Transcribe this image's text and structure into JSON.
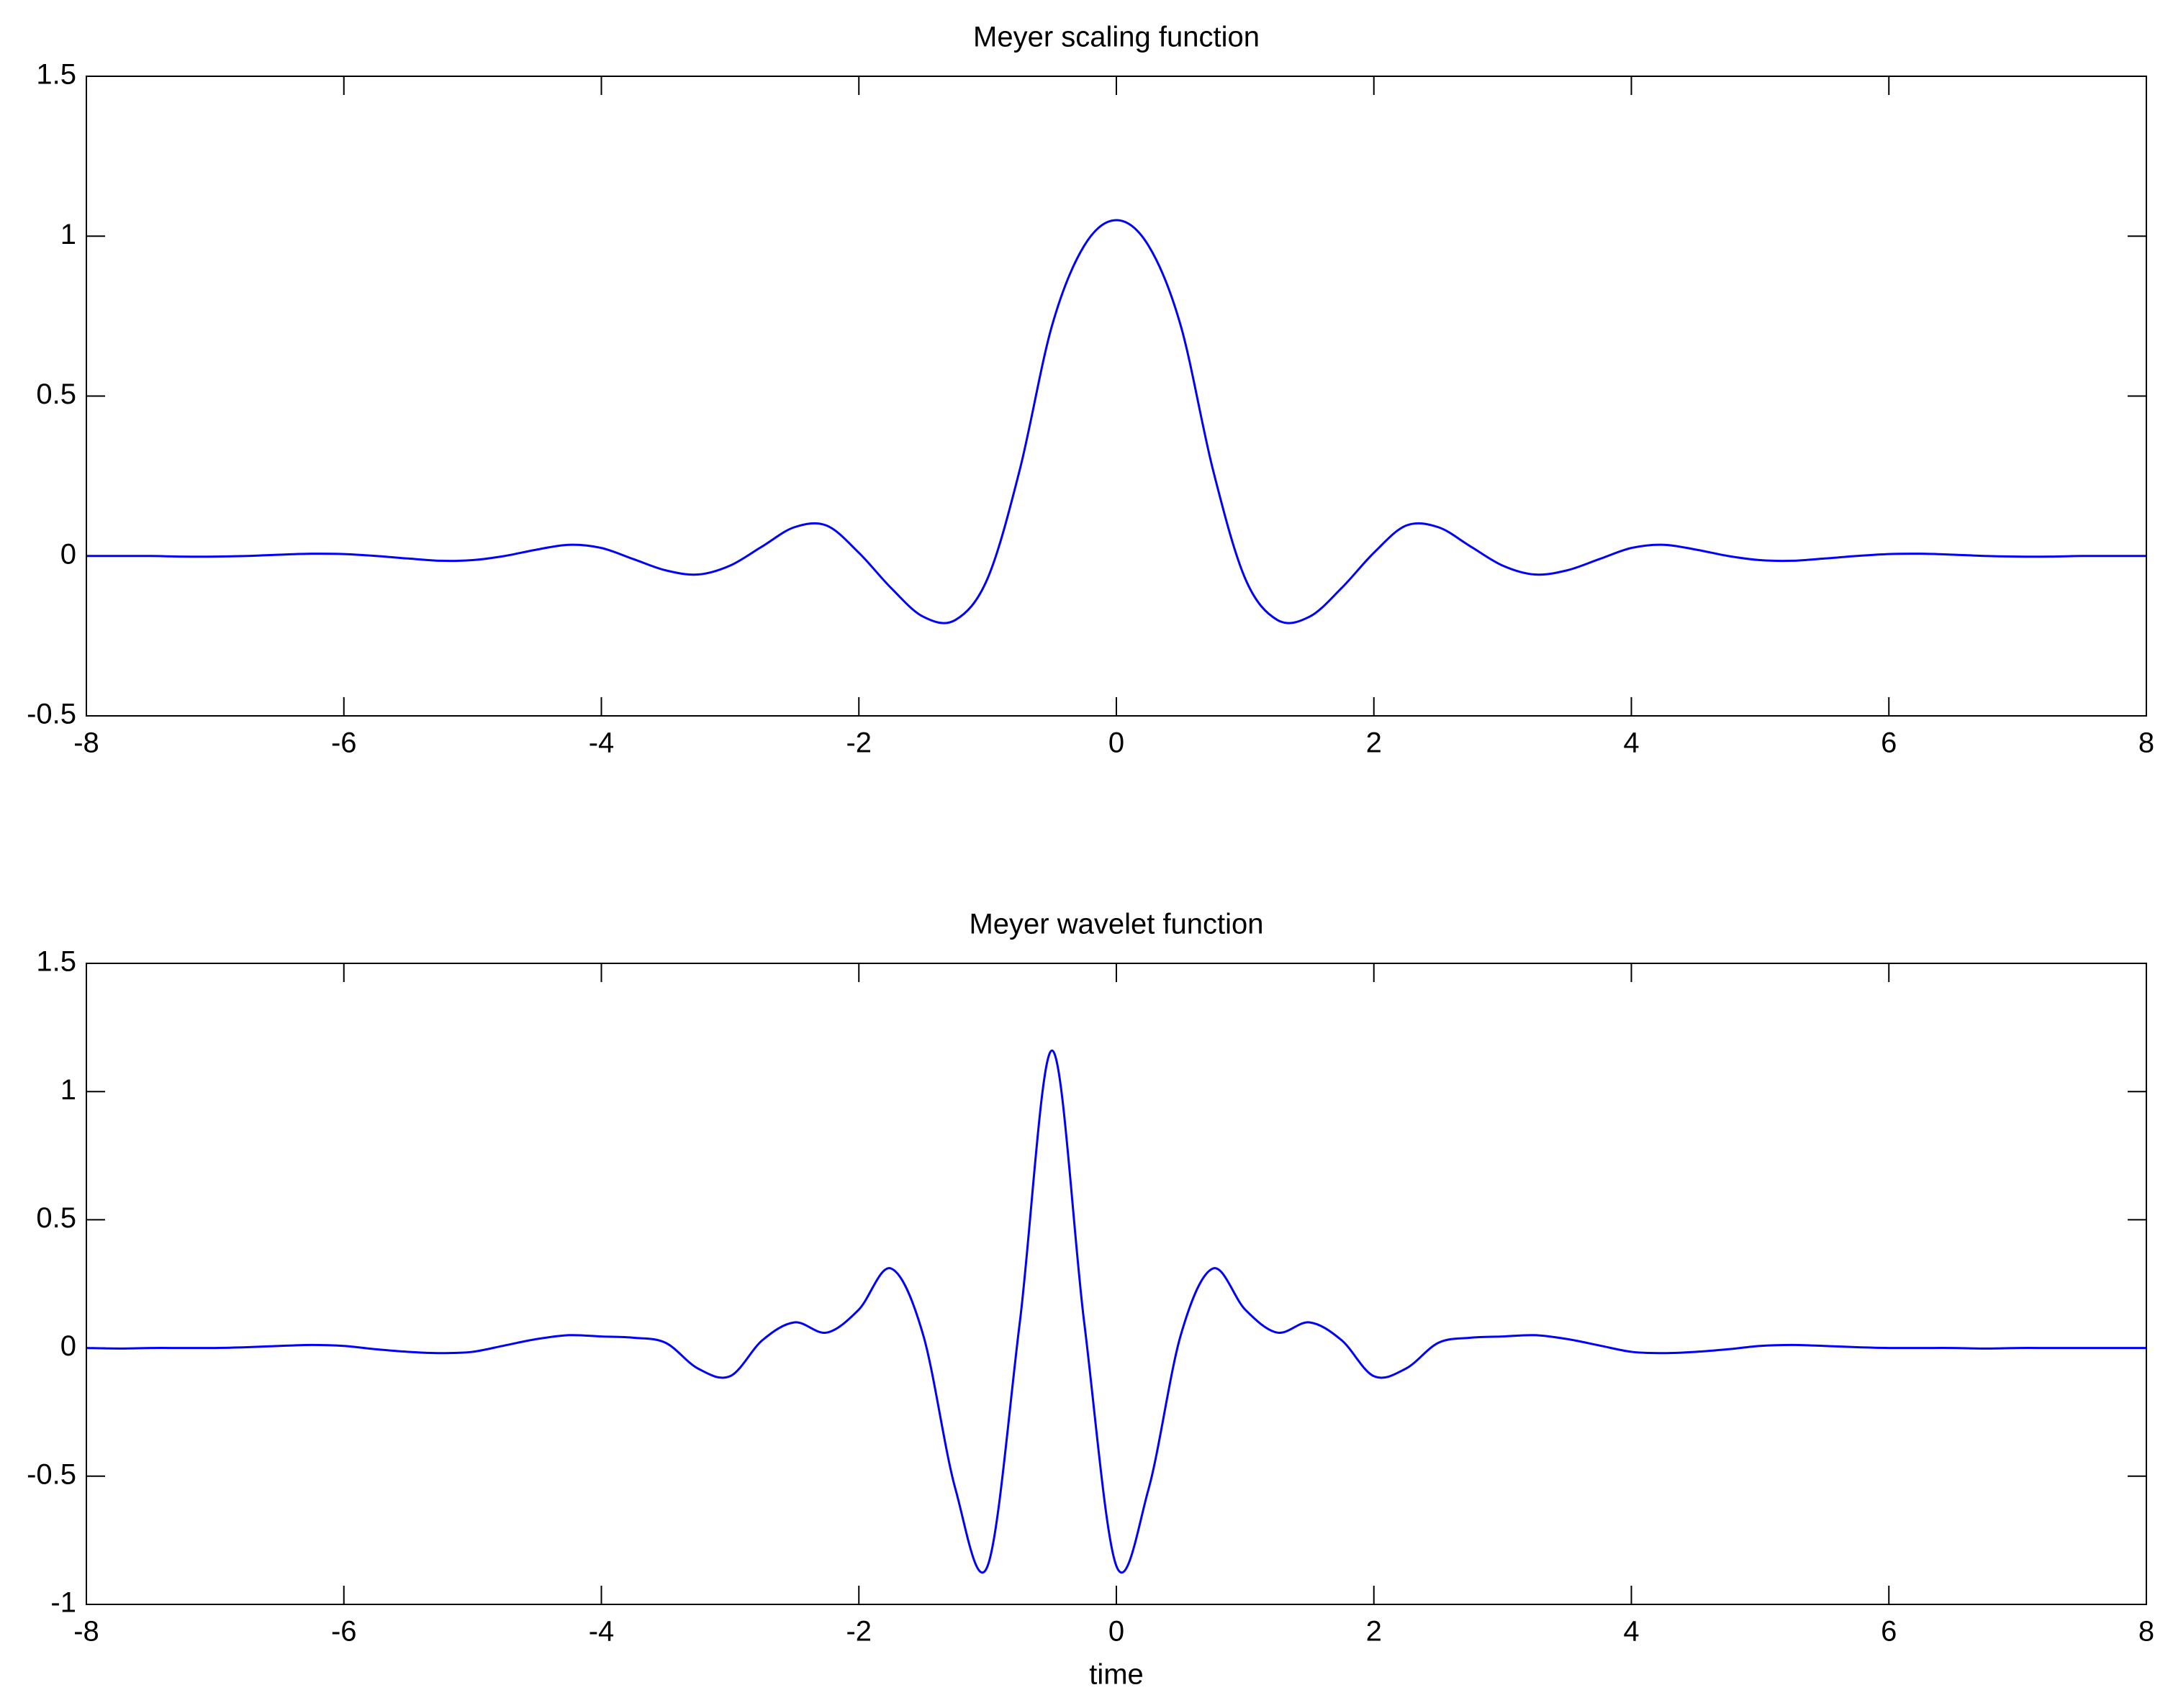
{
  "chart_data": [
    {
      "type": "line",
      "title": "Meyer scaling function",
      "color": "#0000ff",
      "x": [
        -8,
        -7.75,
        -7.5,
        -7.25,
        -7,
        -6.75,
        -6.5,
        -6.25,
        -6,
        -5.75,
        -5.5,
        -5.25,
        -5,
        -4.75,
        -4.5,
        -4.25,
        -4,
        -3.75,
        -3.5,
        -3.25,
        -3,
        -2.75,
        -2.5,
        -2.25,
        -2,
        -1.75,
        -1.5,
        -1.25,
        -1,
        -0.75,
        -0.5,
        -0.25,
        0,
        0.25,
        0.5,
        0.75,
        1,
        1.25,
        1.5,
        1.75,
        2,
        2.25,
        2.5,
        2.75,
        3,
        3.25,
        3.5,
        3.75,
        4,
        4.25,
        4.5,
        4.75,
        5,
        5.25,
        5.5,
        5.75,
        6,
        6.25,
        6.5,
        6.75,
        7,
        7.25,
        7.5,
        7.75,
        8
      ],
      "values": [
        0,
        0,
        0,
        -0.002,
        -0.002,
        0,
        0.004,
        0.007,
        0.006,
        0,
        -0.008,
        -0.015,
        -0.013,
        0,
        0.02,
        0.035,
        0.025,
        -0.01,
        -0.045,
        -0.058,
        -0.03,
        0.03,
        0.09,
        0.095,
        0.01,
        -0.1,
        -0.19,
        -0.2,
        -0.07,
        0.27,
        0.72,
        0.97,
        1.05,
        0.97,
        0.72,
        0.27,
        -0.07,
        -0.2,
        -0.19,
        -0.1,
        0.01,
        0.095,
        0.09,
        0.03,
        -0.03,
        -0.058,
        -0.045,
        -0.01,
        0.025,
        0.035,
        0.02,
        0,
        -0.013,
        -0.015,
        -0.008,
        0,
        0.006,
        0.007,
        0.004,
        0,
        -0.002,
        -0.002,
        0,
        0,
        0
      ],
      "xlim": [
        -8,
        8
      ],
      "xticks": [
        -8,
        -6,
        -4,
        -2,
        0,
        2,
        4,
        6,
        8
      ],
      "ylim": [
        -0.5,
        1.5
      ],
      "yticks": [
        -0.5,
        0,
        0.5,
        1,
        1.5
      ],
      "grid": false
    },
    {
      "type": "line",
      "title": "Meyer wavelet function",
      "xlabel": "time",
      "color": "#0000ff",
      "x": [
        -8,
        -7.75,
        -7.5,
        -7.25,
        -7,
        -6.75,
        -6.5,
        -6.25,
        -6,
        -5.75,
        -5.5,
        -5.25,
        -5,
        -4.75,
        -4.5,
        -4.25,
        -4,
        -3.75,
        -3.5,
        -3.25,
        -3,
        -2.75,
        -2.5,
        -2.25,
        -2,
        -1.75,
        -1.5,
        -1.25,
        -1,
        -0.75,
        -0.5,
        -0.25,
        0,
        0.25,
        0.5,
        0.75,
        1,
        1.25,
        1.5,
        1.75,
        2,
        2.25,
        2.5,
        2.75,
        3,
        3.25,
        3.5,
        3.75,
        4,
        4.25,
        4.5,
        4.75,
        5,
        5.25,
        5.5,
        5.75,
        6,
        6.25,
        6.5,
        6.75,
        7,
        7.25,
        7.5,
        7.75,
        8
      ],
      "values": [
        0,
        -0.002,
        0,
        0,
        0,
        0.003,
        0.008,
        0.012,
        0.008,
        -0.005,
        -0.015,
        -0.02,
        -0.015,
        0.01,
        0.035,
        0.05,
        0.045,
        0.04,
        0.02,
        -0.08,
        -0.11,
        0.03,
        0.1,
        0.06,
        0.15,
        0.31,
        0.05,
        -0.55,
        -0.85,
        0.1,
        1.16,
        0.1,
        -0.85,
        -0.55,
        0.05,
        0.31,
        0.15,
        0.06,
        0.1,
        0.03,
        -0.11,
        -0.08,
        0.02,
        0.04,
        0.045,
        0.05,
        0.035,
        0.01,
        -0.015,
        -0.02,
        -0.015,
        -0.005,
        0.008,
        0.012,
        0.008,
        0.003,
        0,
        0,
        0,
        -0.002,
        0,
        0,
        0,
        0,
        0
      ],
      "xlim": [
        -8,
        8
      ],
      "xticks": [
        -8,
        -6,
        -4,
        -2,
        0,
        2,
        4,
        6,
        8
      ],
      "ylim": [
        -1,
        1.5
      ],
      "yticks": [
        -1,
        -0.5,
        0,
        0.5,
        1,
        1.5
      ],
      "grid": false
    }
  ]
}
